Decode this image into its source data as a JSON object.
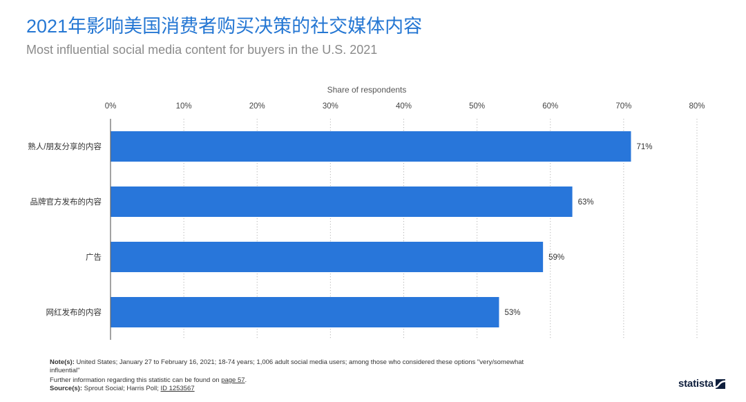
{
  "chart_data": {
    "type": "bar",
    "orientation": "horizontal",
    "title": "2021年影响美国消费者购买决策的社交媒体内容",
    "subtitle": "Most influential social media content for buyers in the U.S. 2021",
    "xlabel": "Share of respondents",
    "categories": [
      "熟人/朋友分享的内容",
      "品牌官方发布的内容",
      "广告",
      "网红发布的内容"
    ],
    "values": [
      71,
      63,
      59,
      53
    ],
    "value_labels": [
      "71%",
      "63%",
      "59%",
      "53%"
    ],
    "xlim": [
      0,
      80
    ],
    "ticks": [
      0,
      10,
      20,
      30,
      40,
      50,
      60,
      70,
      80
    ],
    "tick_labels": [
      "0%",
      "10%",
      "20%",
      "30%",
      "40%",
      "50%",
      "60%",
      "70%",
      "80%"
    ],
    "grid": true,
    "bar_color": "#2876da"
  },
  "footer": {
    "note_label": "Note(s):",
    "note_text": "United States; January 27 to February 16, 2021; 18-74 years; 1,006 adult social media users; among those who considered these options \"very/somewhat influential\"",
    "further_info_text": "Further information regarding this statistic can be found on",
    "further_info_link": "page 57",
    "further_info_end": ".",
    "source_label": "Source(s):",
    "source_text": "Sprout Social; Harris Poll;",
    "source_id": "ID 1253567"
  },
  "logo": {
    "text": "statista",
    "icon": "statista-logo-icon",
    "color": "#0f1f3d"
  }
}
